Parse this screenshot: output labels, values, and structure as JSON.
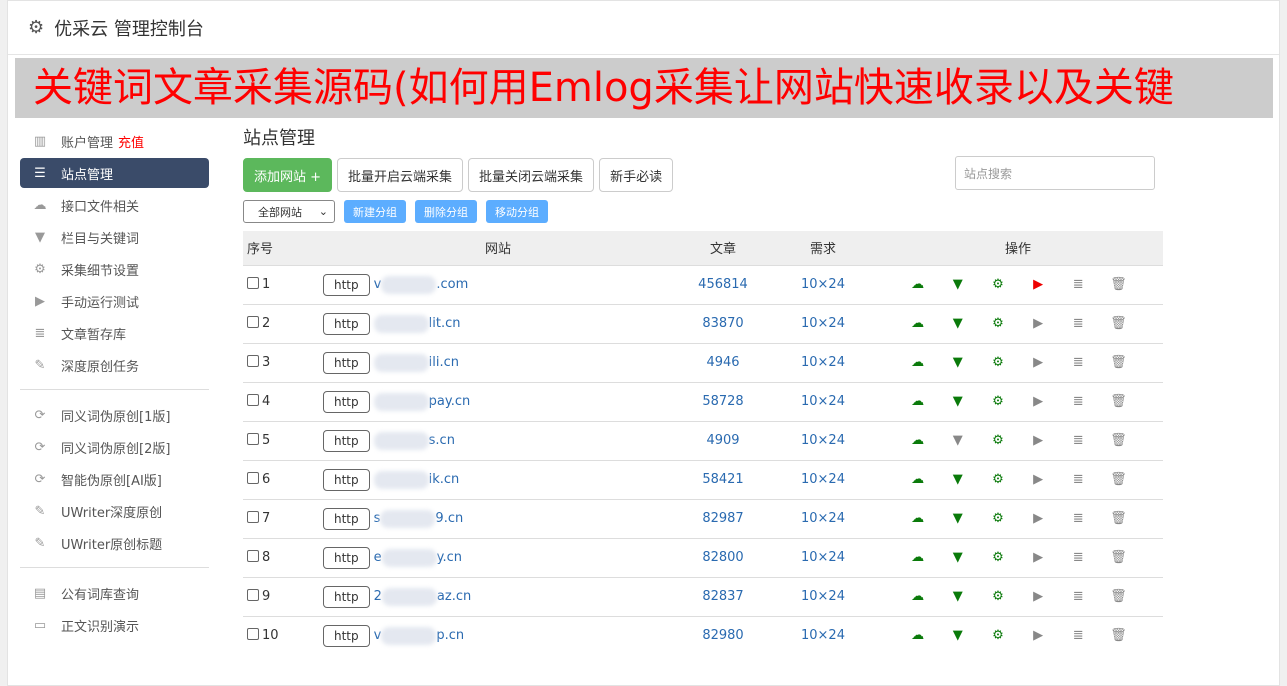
{
  "header": {
    "title": "优采云 管理控制台"
  },
  "sidebar": {
    "items": [
      {
        "label": "账户管理",
        "badge": "充值",
        "icon": "bar-chart-icon"
      },
      {
        "label": "站点管理",
        "icon": "server-icon",
        "active": true
      },
      {
        "label": "接口文件相关",
        "icon": "cloud-upload-icon"
      },
      {
        "label": "栏目与关键词",
        "icon": "filter-icon"
      },
      {
        "label": "采集细节设置",
        "icon": "gears-icon"
      },
      {
        "label": "手动运行测试",
        "icon": "play-icon"
      },
      {
        "label": "文章暂存库",
        "icon": "database-icon"
      },
      {
        "label": "深度原创任务",
        "icon": "edit-icon"
      }
    ],
    "group2": [
      {
        "label": "同义词伪原创[1版]",
        "icon": "refresh-icon"
      },
      {
        "label": "同义词伪原创[2版]",
        "icon": "refresh-icon"
      },
      {
        "label": "智能伪原创[AI版]",
        "icon": "refresh-icon"
      },
      {
        "label": "UWriter深度原创",
        "icon": "edit-icon"
      },
      {
        "label": "UWriter原创标题",
        "icon": "edit-icon"
      }
    ],
    "group3": [
      {
        "label": "公有词库查询",
        "icon": "book-icon"
      },
      {
        "label": "正文识别演示",
        "icon": "monitor-icon"
      }
    ]
  },
  "main": {
    "title": "站点管理",
    "buttons": {
      "add": "添加网站 +",
      "batch_on": "批量开启云端采集",
      "batch_off": "批量关闭云端采集",
      "guide": "新手必读"
    },
    "search_placeholder": "站点搜索",
    "group_select": "全部网站",
    "group_buttons": {
      "new": "新建分组",
      "delete": "删除分组",
      "move": "移动分组"
    },
    "columns": [
      "序号",
      "网站",
      "文章",
      "需求",
      "操作"
    ],
    "rows": [
      {
        "n": "1",
        "proto": "http",
        "pre": "v",
        "suf": ".com",
        "articles": "456814",
        "req": "10×24",
        "filter_on": true,
        "play_red": true
      },
      {
        "n": "2",
        "proto": "http",
        "pre": "",
        "suf": "lit.cn",
        "articles": "83870",
        "req": "10×24",
        "filter_on": true
      },
      {
        "n": "3",
        "proto": "http",
        "pre": "",
        "suf": "ili.cn",
        "articles": "4946",
        "req": "10×24",
        "filter_on": true
      },
      {
        "n": "4",
        "proto": "http",
        "pre": "",
        "suf": "pay.cn",
        "articles": "58728",
        "req": "10×24",
        "filter_on": true
      },
      {
        "n": "5",
        "proto": "http",
        "pre": "",
        "suf": "s.cn",
        "articles": "4909",
        "req": "10×24",
        "filter_on": false
      },
      {
        "n": "6",
        "proto": "http",
        "pre": "",
        "suf": "ik.cn",
        "articles": "58421",
        "req": "10×24",
        "filter_on": true
      },
      {
        "n": "7",
        "proto": "http",
        "pre": "s",
        "suf": "9.cn",
        "articles": "82987",
        "req": "10×24",
        "filter_on": true
      },
      {
        "n": "8",
        "proto": "http",
        "pre": "e",
        "suf": "y.cn",
        "articles": "82800",
        "req": "10×24",
        "filter_on": true
      },
      {
        "n": "9",
        "proto": "http",
        "pre": "2",
        "suf": "az.cn",
        "articles": "82837",
        "req": "10×24",
        "filter_on": true
      },
      {
        "n": "10",
        "proto": "http",
        "pre": "v",
        "suf": "p.cn",
        "articles": "82980",
        "req": "10×24",
        "filter_on": true
      }
    ]
  },
  "overlay": {
    "text": "关键词文章采集源码(如何用Emlog采集让网站快速收录以及关键"
  }
}
